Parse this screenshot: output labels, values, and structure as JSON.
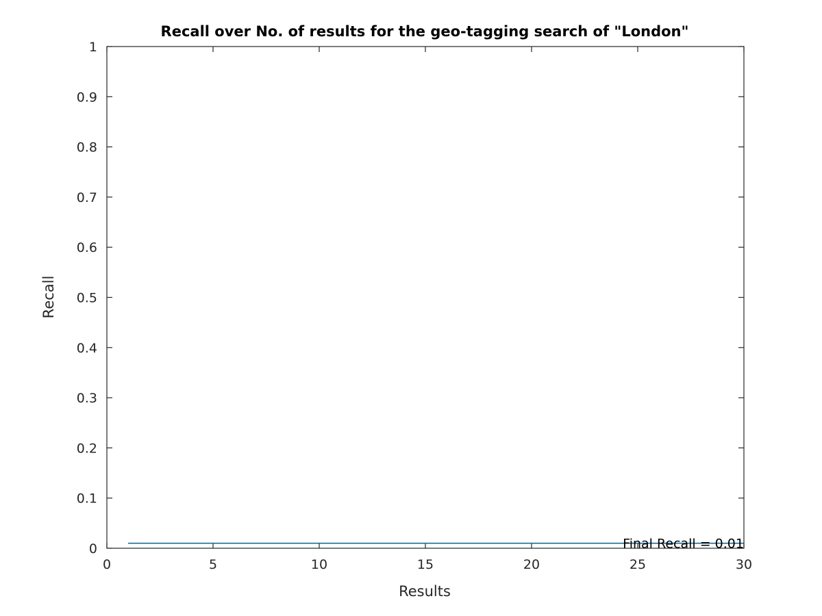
{
  "chart_data": {
    "type": "line",
    "title": "Recall over No. of results for the geo-tagging search of \"London\"",
    "xlabel": "Results",
    "ylabel": "Recall",
    "xlim": [
      0,
      30
    ],
    "ylim": [
      0,
      1
    ],
    "xticks": [
      0,
      5,
      10,
      15,
      20,
      25,
      30
    ],
    "xtick_labels": [
      "0",
      "5",
      "10",
      "15",
      "20",
      "25",
      "30"
    ],
    "yticks": [
      0,
      0.1,
      0.2,
      0.3,
      0.4,
      0.5,
      0.6,
      0.7,
      0.8,
      0.9,
      1
    ],
    "ytick_labels": [
      "0",
      "0.1",
      "0.2",
      "0.3",
      "0.4",
      "0.5",
      "0.6",
      "0.7",
      "0.8",
      "0.9",
      "1"
    ],
    "grid": false,
    "series": [
      {
        "color": "#0072BD",
        "x": [
          1,
          2,
          3,
          4,
          5,
          6,
          7,
          8,
          9,
          10,
          11,
          12,
          13,
          14,
          15,
          16,
          17,
          18,
          19,
          20,
          21,
          22,
          23,
          24,
          25,
          26,
          27,
          28,
          29,
          30
        ],
        "y": [
          0.01,
          0.01,
          0.01,
          0.01,
          0.01,
          0.01,
          0.01,
          0.01,
          0.01,
          0.01,
          0.01,
          0.01,
          0.01,
          0.01,
          0.01,
          0.01,
          0.01,
          0.01,
          0.01,
          0.01,
          0.01,
          0.01,
          0.01,
          0.01,
          0.01,
          0.01,
          0.01,
          0.01,
          0.01,
          0.01
        ]
      }
    ],
    "annotation": {
      "text": "Final Recall = 0.01",
      "x": 30,
      "y": 0.01,
      "align": "right"
    }
  }
}
